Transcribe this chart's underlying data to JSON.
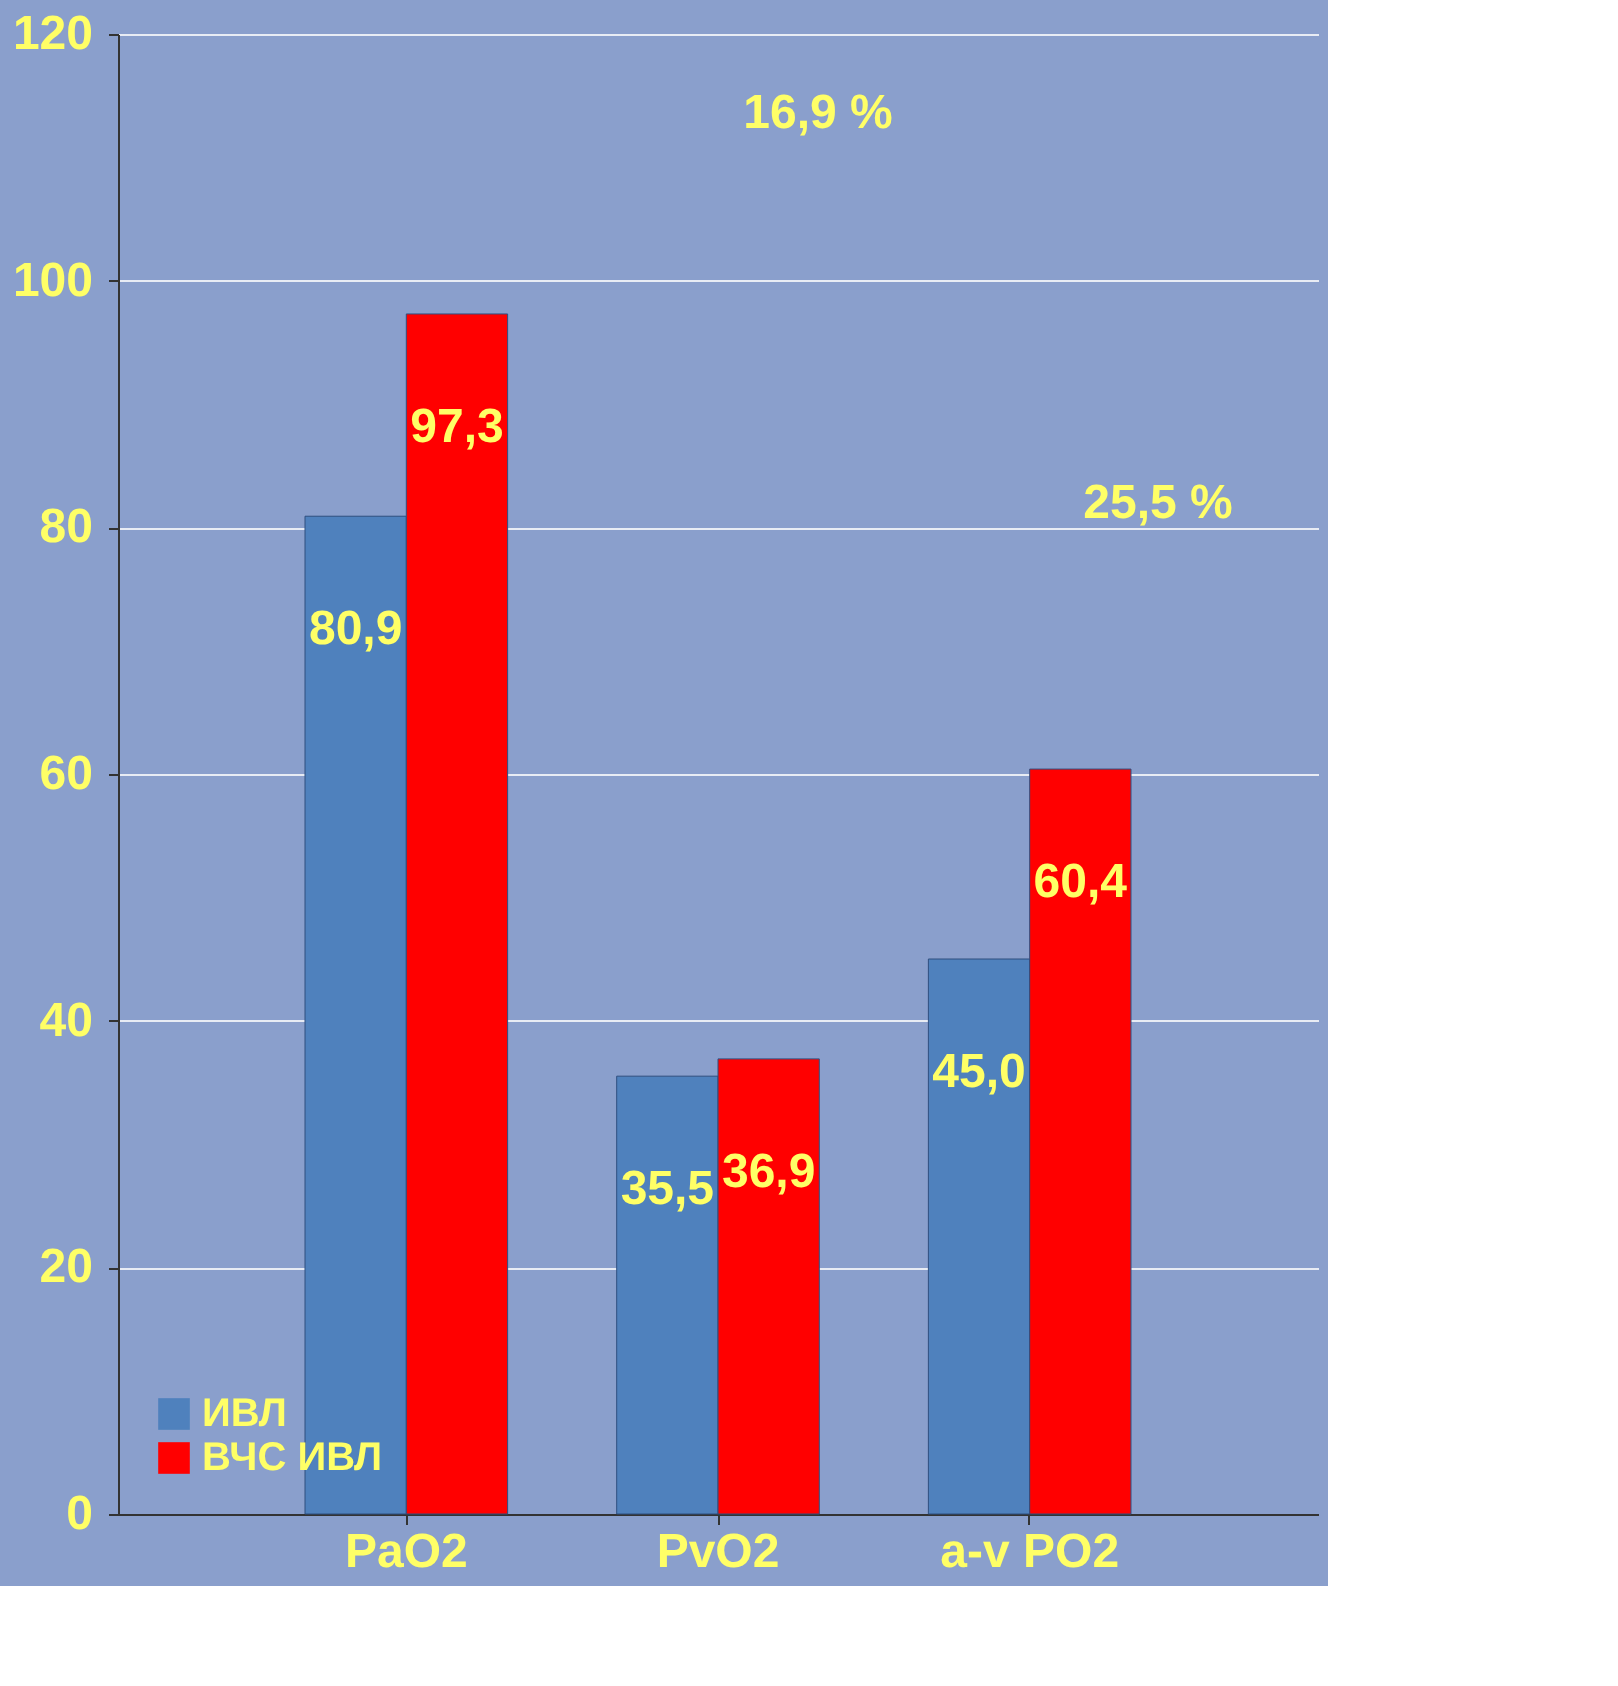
{
  "chart_data": {
    "type": "bar",
    "categories": [
      "PaO2",
      "PvO2",
      "a-v PO2"
    ],
    "series": [
      {
        "name": "ИВЛ",
        "color": "#4f81bd",
        "values": [
          80.9,
          35.5,
          45.0
        ],
        "value_labels": [
          "80,9",
          "35,5",
          "45,0"
        ]
      },
      {
        "name": "ВЧС ИВЛ",
        "color": "#ff0000",
        "values": [
          97.3,
          36.9,
          60.4
        ],
        "value_labels": [
          "97,3",
          "36,9",
          "60,4"
        ]
      }
    ],
    "ylim": [
      0,
      120
    ],
    "yticks": [
      0,
      20,
      40,
      60,
      80,
      100,
      120
    ],
    "grid": "y",
    "legend": "bottom left",
    "annotations": [
      "16,9 %",
      "25,5 %"
    ]
  }
}
